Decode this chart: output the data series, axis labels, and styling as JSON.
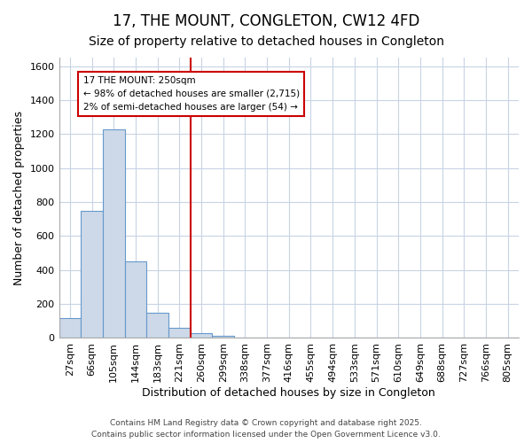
{
  "title": "17, THE MOUNT, CONGLETON, CW12 4FD",
  "subtitle": "Size of property relative to detached houses in Congleton",
  "xlabel": "Distribution of detached houses by size in Congleton",
  "ylabel": "Number of detached properties",
  "bar_labels": [
    "27sqm",
    "66sqm",
    "105sqm",
    "144sqm",
    "183sqm",
    "221sqm",
    "260sqm",
    "299sqm",
    "338sqm",
    "377sqm",
    "416sqm",
    "455sqm",
    "494sqm",
    "533sqm",
    "571sqm",
    "610sqm",
    "649sqm",
    "688sqm",
    "727sqm",
    "766sqm",
    "805sqm"
  ],
  "bar_values": [
    115,
    750,
    1230,
    450,
    150,
    60,
    30,
    15,
    0,
    0,
    0,
    0,
    0,
    0,
    0,
    0,
    0,
    0,
    0,
    0,
    0
  ],
  "bar_color": "#cdd9e8",
  "bar_edge_color": "#6699cc",
  "vline_x_index": 6,
  "vline_color": "#cc0000",
  "annotation_text": "17 THE MOUNT: 250sqm\n← 98% of detached houses are smaller (2,715)\n2% of semi-detached houses are larger (54) →",
  "annotation_box_color": "white",
  "annotation_box_edge": "#cc0000",
  "ylim": [
    0,
    1650
  ],
  "yticks": [
    0,
    200,
    400,
    600,
    800,
    1000,
    1200,
    1400,
    1600
  ],
  "fig_background": "#ffffff",
  "plot_background": "#ffffff",
  "grid_color": "#c8d4e4",
  "title_fontsize": 12,
  "subtitle_fontsize": 10,
  "axis_label_fontsize": 9,
  "tick_fontsize": 8,
  "footer_text": "Contains HM Land Registry data © Crown copyright and database right 2025.\nContains public sector information licensed under the Open Government Licence v3.0."
}
